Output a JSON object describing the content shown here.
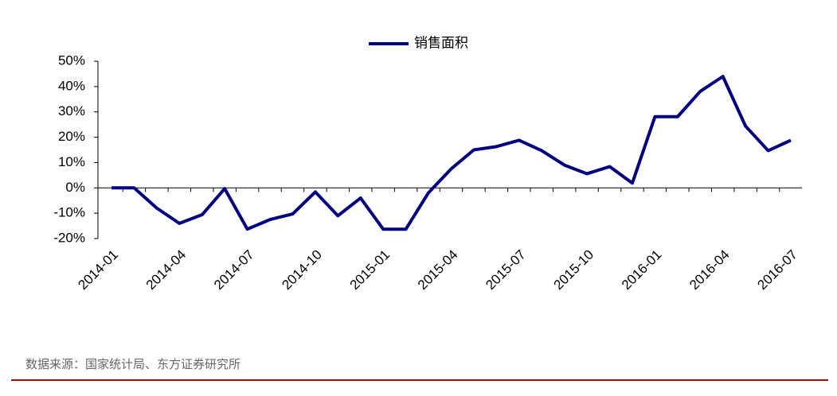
{
  "chart_data": {
    "type": "line",
    "categories": [
      "2014-01",
      null,
      null,
      "2014-04",
      null,
      null,
      "2014-07",
      null,
      null,
      "2014-10",
      null,
      null,
      "2015-01",
      null,
      null,
      "2015-04",
      null,
      null,
      "2015-07",
      null,
      null,
      "2015-10",
      null,
      null,
      "2016-01",
      null,
      null,
      "2016-04",
      null,
      null,
      "2016-07"
    ],
    "series": [
      {
        "name": "销售面积",
        "color": "#000080",
        "values": [
          0,
          0,
          -8,
          -14,
          -10.6,
          -0.3,
          -16.3,
          -12.5,
          -10.3,
          -1.6,
          -11,
          -4,
          -16.3,
          -16.3,
          -1.9,
          7.5,
          15,
          16.3,
          18.8,
          14.7,
          9,
          5.6,
          8.4,
          1.9,
          28.1,
          28.1,
          38.1,
          44,
          24.4,
          14.7,
          18.8
        ]
      }
    ],
    "ylim": [
      -20,
      50
    ],
    "yticks": [
      {
        "value": -20,
        "label": "-20%"
      },
      {
        "value": -10,
        "label": "-10%"
      },
      {
        "value": 0,
        "label": "0%"
      },
      {
        "value": 10,
        "label": "10%"
      },
      {
        "value": 20,
        "label": "20%"
      },
      {
        "value": 30,
        "label": "30%"
      },
      {
        "value": 40,
        "label": "40%"
      },
      {
        "value": 50,
        "label": "50%"
      }
    ],
    "source": "数据来源：国家统计局、东方证券研究所"
  }
}
